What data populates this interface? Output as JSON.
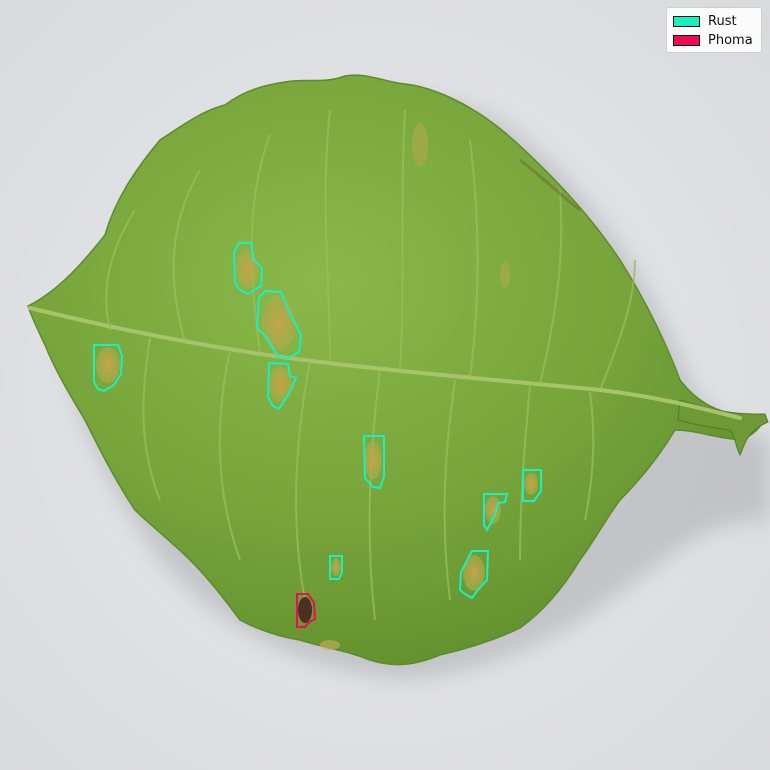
{
  "image": {
    "subject": "coffee-leaf",
    "background_color": "#e2e3e6",
    "leaf_color": "#76a43a"
  },
  "legend": {
    "items": [
      {
        "label": "Rust",
        "color": "#19f0c0"
      },
      {
        "label": "Phoma",
        "color": "#f00a55"
      }
    ]
  },
  "annotations": {
    "rust_count": 10,
    "phoma_count": 1
  }
}
